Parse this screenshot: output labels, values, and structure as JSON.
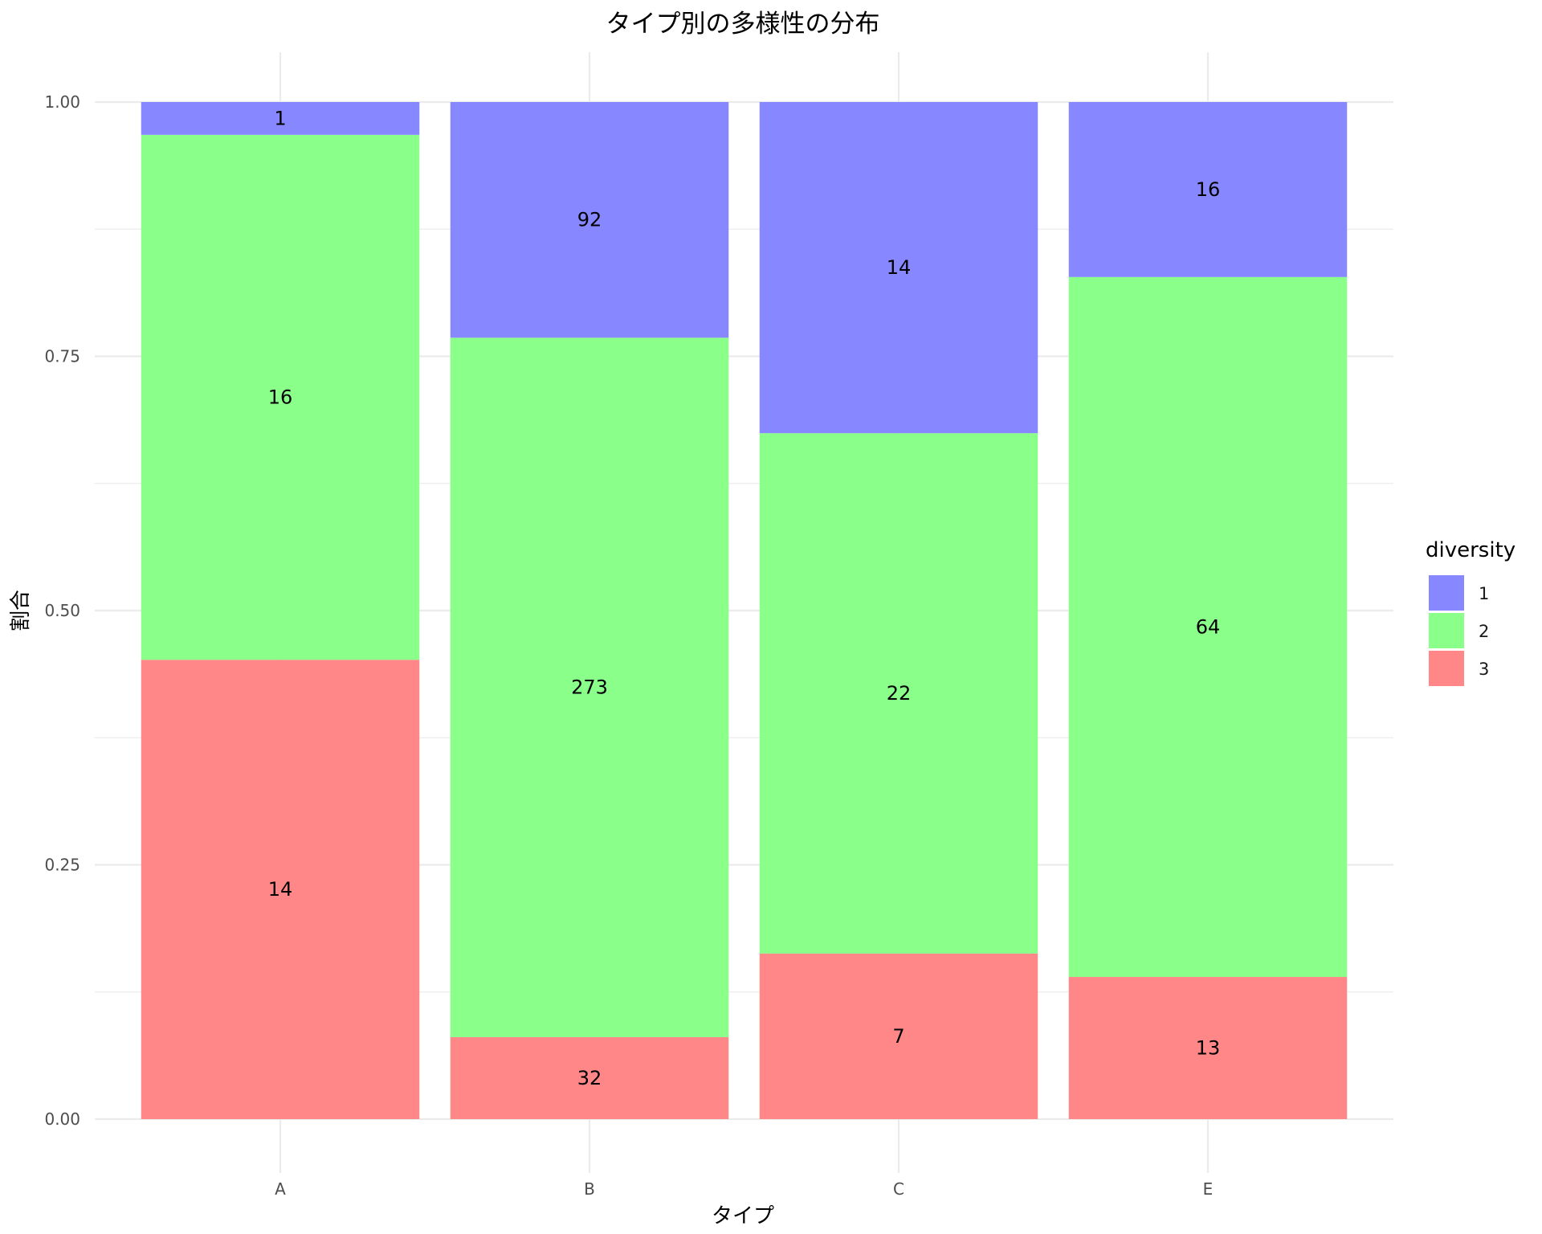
{
  "chart_data": {
    "type": "bar",
    "stacked": true,
    "normalized": true,
    "title": "タイプ別の多様性の分布",
    "xlabel": "タイプ",
    "ylabel": "割合",
    "categories": [
      "A",
      "B",
      "C",
      "E"
    ],
    "ylim": [
      0,
      1
    ],
    "yticks": [
      "0.00",
      "0.25",
      "0.50",
      "0.75",
      "1.00"
    ],
    "grid": true,
    "legend": {
      "title": "diversity",
      "position": "right"
    },
    "series": [
      {
        "name": "1",
        "color": "#8787FF",
        "counts": [
          1,
          92,
          14,
          16
        ]
      },
      {
        "name": "2",
        "color": "#8AFF8A",
        "counts": [
          16,
          273,
          22,
          64
        ]
      },
      {
        "name": "3",
        "color": "#FF8787",
        "counts": [
          14,
          32,
          7,
          13
        ]
      }
    ]
  }
}
